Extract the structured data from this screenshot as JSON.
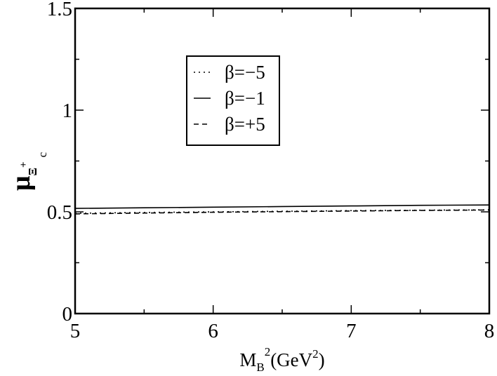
{
  "chart_data": {
    "type": "line",
    "x_label": {
      "main": "M",
      "sub": "B",
      "sup": "2",
      "rest": "(GeV",
      "rest_sup": "2",
      "close": ")"
    },
    "y_label": {
      "main": "μ",
      "sub": "Ξ",
      "sub_sup": "+",
      "sub_sub": "c"
    },
    "x": [
      5,
      5.5,
      6,
      6.5,
      7,
      7.5,
      8
    ],
    "series": [
      {
        "name": "β=−5",
        "color": "#000000",
        "dash": "dotted",
        "values": [
          0.493,
          0.497,
          0.5,
          0.503,
          0.506,
          0.508,
          0.51
        ]
      },
      {
        "name": "β=−1",
        "color": "#000000",
        "dash": "solid",
        "values": [
          0.517,
          0.52,
          0.523,
          0.526,
          0.529,
          0.532,
          0.534
        ]
      },
      {
        "name": "β=+5",
        "color": "#000000",
        "dash": "dashed",
        "values": [
          0.49,
          0.494,
          0.498,
          0.501,
          0.504,
          0.507,
          0.509
        ]
      }
    ],
    "xlim": [
      5,
      8
    ],
    "ylim": [
      0,
      1.5
    ],
    "xticks": [
      5,
      6,
      7,
      8
    ],
    "yticks": [
      0,
      0.5,
      1,
      1.5
    ],
    "xminorticks": [
      5.5,
      6.5,
      7.5
    ],
    "yminorticks": [
      0.25,
      0.75,
      1.25
    ],
    "grid": false
  }
}
